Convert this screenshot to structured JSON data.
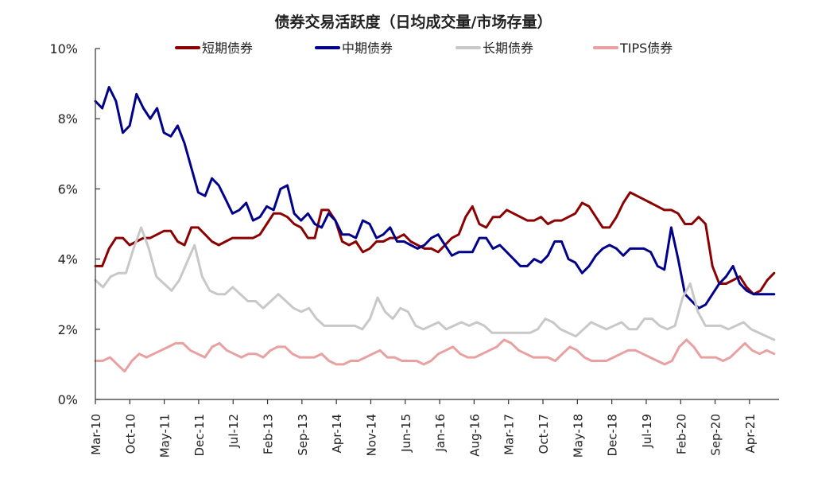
{
  "chart_data": {
    "type": "line",
    "title": "债券交易活跃度（日均成交量/市场存量）",
    "xlabel": "",
    "ylabel": "",
    "ylim": [
      0,
      10
    ],
    "yticks": [
      "0%",
      "2%",
      "4%",
      "6%",
      "8%",
      "10%"
    ],
    "xticks": [
      "Mar-10",
      "Oct-10",
      "May-11",
      "Dec-11",
      "Jul-12",
      "Feb-13",
      "Sep-13",
      "Apr-14",
      "Nov-14",
      "Jun-15",
      "Jan-16",
      "Aug-16",
      "Mar-17",
      "Oct-17",
      "May-18",
      "Dec-18",
      "Jul-19",
      "Feb-20",
      "Sep-20",
      "Apr-21"
    ],
    "x_start": "2010-03",
    "legend_position": "top",
    "grid": false,
    "series": [
      {
        "name": "短期债券",
        "color": "#8B0000",
        "values": [
          3.8,
          3.8,
          4.3,
          4.6,
          4.6,
          4.4,
          4.5,
          4.6,
          4.6,
          4.7,
          4.8,
          4.8,
          4.5,
          4.4,
          4.9,
          4.9,
          4.7,
          4.5,
          4.4,
          4.5,
          4.6,
          4.6,
          4.6,
          4.6,
          4.7,
          5.0,
          5.3,
          5.3,
          5.2,
          5.0,
          4.9,
          4.6,
          4.6,
          5.4,
          5.4,
          5.1,
          4.5,
          4.4,
          4.5,
          4.2,
          4.3,
          4.5,
          4.5,
          4.6,
          4.6,
          4.7,
          4.5,
          4.4,
          4.3,
          4.3,
          4.2,
          4.4,
          4.6,
          4.7,
          5.2,
          5.5,
          5.0,
          4.9,
          5.2,
          5.2,
          5.4,
          5.3,
          5.2,
          5.1,
          5.1,
          5.2,
          5.0,
          5.1,
          5.1,
          5.2,
          5.3,
          5.6,
          5.5,
          5.2,
          4.9,
          4.9,
          5.2,
          5.6,
          5.9,
          5.8,
          5.7,
          5.6,
          5.5,
          5.4,
          5.4,
          5.3,
          5.0,
          5.0,
          5.2,
          5.0,
          3.8,
          3.3,
          3.3,
          3.4,
          3.5,
          3.2,
          3.0,
          3.1,
          3.4,
          3.6
        ]
      },
      {
        "name": "中期债券",
        "color": "#00008B",
        "values": [
          8.5,
          8.3,
          8.9,
          8.5,
          7.6,
          7.8,
          8.7,
          8.3,
          8.0,
          8.3,
          7.6,
          7.5,
          7.8,
          7.3,
          6.6,
          5.9,
          5.8,
          6.3,
          6.1,
          5.7,
          5.3,
          5.4,
          5.6,
          5.1,
          5.2,
          5.5,
          5.4,
          6.0,
          6.1,
          5.3,
          5.1,
          5.3,
          5.0,
          4.9,
          5.3,
          5.1,
          4.7,
          4.7,
          4.6,
          5.1,
          5.0,
          4.6,
          4.7,
          4.9,
          4.5,
          4.5,
          4.4,
          4.3,
          4.4,
          4.6,
          4.7,
          4.4,
          4.1,
          4.2,
          4.2,
          4.2,
          4.6,
          4.6,
          4.3,
          4.4,
          4.2,
          4.0,
          3.8,
          3.8,
          4.0,
          3.9,
          4.1,
          4.5,
          4.5,
          4.0,
          3.9,
          3.6,
          3.8,
          4.1,
          4.3,
          4.4,
          4.3,
          4.1,
          4.3,
          4.3,
          4.3,
          4.2,
          3.8,
          3.7,
          4.9,
          4.0,
          3.0,
          2.8,
          2.6,
          2.7,
          3.0,
          3.3,
          3.5,
          3.8,
          3.3,
          3.1,
          3.0,
          3.0,
          3.0,
          3.0
        ]
      },
      {
        "name": "长期债券",
        "color": "#C8C8C8",
        "values": [
          3.4,
          3.2,
          3.5,
          3.6,
          3.6,
          4.3,
          4.9,
          4.3,
          3.5,
          3.3,
          3.1,
          3.4,
          3.9,
          4.4,
          3.5,
          3.1,
          3.0,
          3.0,
          3.2,
          3.0,
          2.8,
          2.8,
          2.6,
          2.8,
          3.0,
          2.8,
          2.6,
          2.5,
          2.6,
          2.3,
          2.1,
          2.1,
          2.1,
          2.1,
          2.1,
          2.0,
          2.3,
          2.9,
          2.5,
          2.3,
          2.6,
          2.5,
          2.1,
          2.0,
          2.1,
          2.2,
          2.0,
          2.1,
          2.2,
          2.1,
          2.2,
          2.1,
          1.9,
          1.9,
          1.9,
          1.9,
          1.9,
          1.9,
          2.0,
          2.3,
          2.2,
          2.0,
          1.9,
          1.8,
          2.0,
          2.2,
          2.1,
          2.0,
          2.1,
          2.2,
          2.0,
          2.0,
          2.3,
          2.3,
          2.1,
          2.0,
          2.1,
          2.9,
          3.3,
          2.5,
          2.1,
          2.1,
          2.1,
          2.0,
          2.1,
          2.2,
          2.0,
          1.9,
          1.8,
          1.7
        ]
      },
      {
        "name": "TIPS债券",
        "color": "#E8A0A0",
        "values": [
          1.1,
          1.1,
          1.2,
          1.0,
          0.8,
          1.1,
          1.3,
          1.2,
          1.3,
          1.4,
          1.5,
          1.6,
          1.6,
          1.4,
          1.3,
          1.2,
          1.5,
          1.6,
          1.4,
          1.3,
          1.2,
          1.3,
          1.3,
          1.2,
          1.4,
          1.5,
          1.5,
          1.3,
          1.2,
          1.2,
          1.2,
          1.3,
          1.1,
          1.0,
          1.0,
          1.1,
          1.1,
          1.2,
          1.3,
          1.4,
          1.2,
          1.2,
          1.1,
          1.1,
          1.1,
          1.0,
          1.1,
          1.3,
          1.4,
          1.5,
          1.3,
          1.2,
          1.2,
          1.3,
          1.4,
          1.5,
          1.7,
          1.6,
          1.4,
          1.3,
          1.2,
          1.2,
          1.2,
          1.1,
          1.3,
          1.5,
          1.4,
          1.2,
          1.1,
          1.1,
          1.1,
          1.2,
          1.3,
          1.4,
          1.4,
          1.3,
          1.2,
          1.1,
          1.0,
          1.1,
          1.5,
          1.7,
          1.5,
          1.2,
          1.2,
          1.2,
          1.1,
          1.2,
          1.4,
          1.6,
          1.4,
          1.3,
          1.4,
          1.3
        ]
      }
    ]
  }
}
